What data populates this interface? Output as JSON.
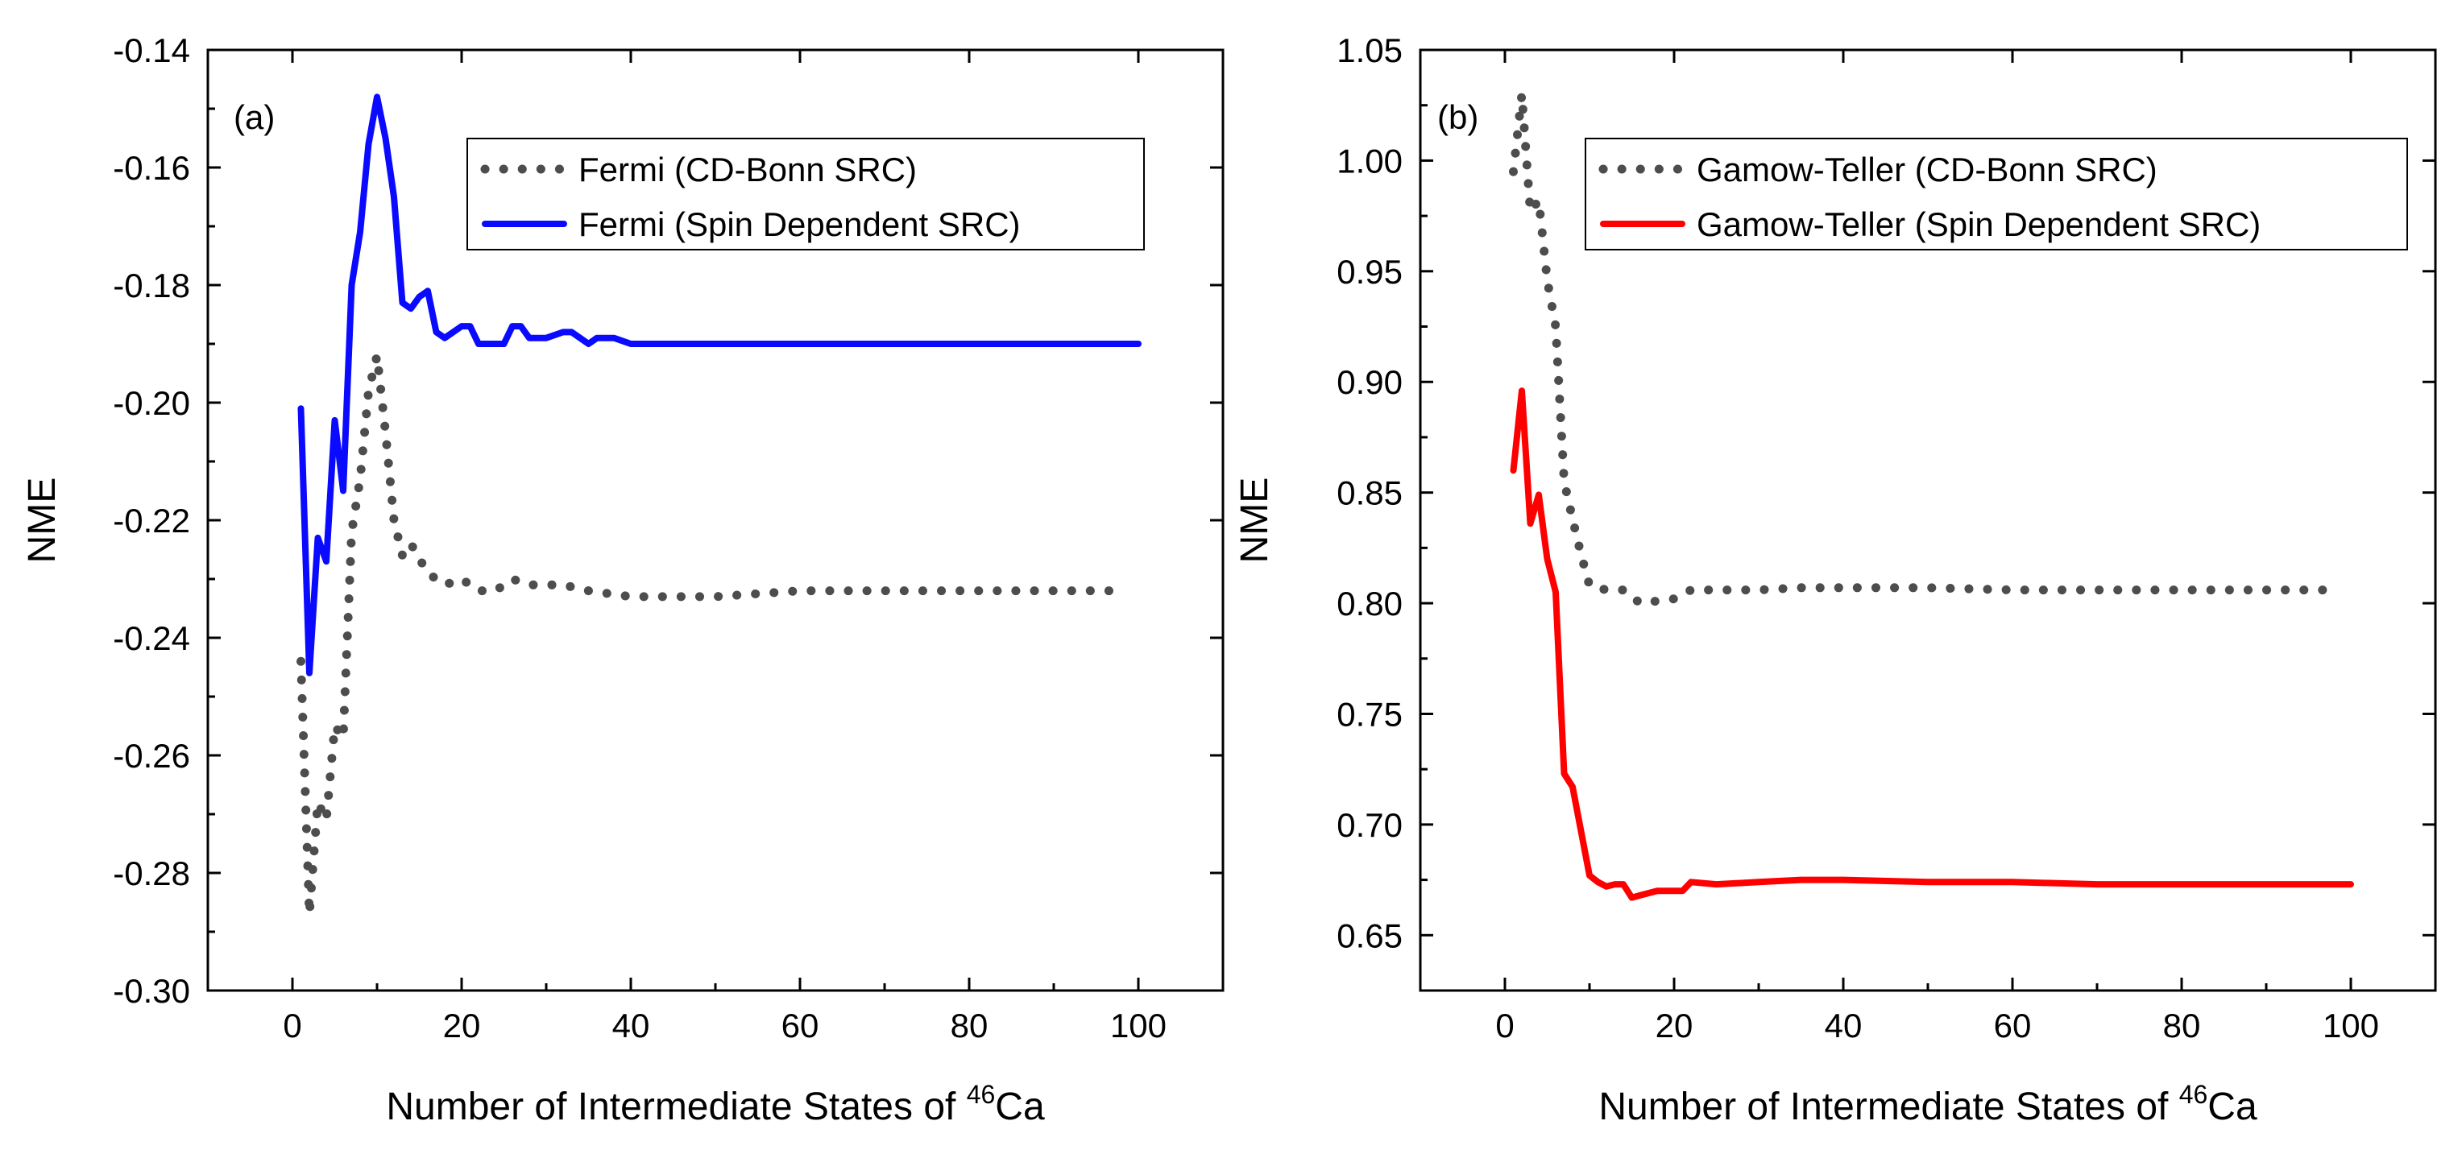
{
  "chart_data": [
    {
      "type": "line",
      "panel_label": "(a)",
      "xlabel": {
        "main": "Number of Intermediate States of ",
        "sup": "46",
        "tail": "Ca"
      },
      "ylabel": "NME",
      "xlim": [
        -10,
        110
      ],
      "ylim": [
        -0.3,
        -0.14
      ],
      "xticks": [
        0,
        20,
        40,
        60,
        80,
        100
      ],
      "xtick_labels": [
        "0",
        "20",
        "40",
        "60",
        "80",
        "100"
      ],
      "yticks": [
        -0.3,
        -0.28,
        -0.26,
        -0.24,
        -0.22,
        -0.2,
        -0.18,
        -0.16,
        -0.14
      ],
      "ytick_labels": [
        "-0.30",
        "-0.28",
        "-0.26",
        "-0.24",
        "-0.22",
        "-0.20",
        "-0.18",
        "-0.16",
        "-0.14"
      ],
      "grid": false,
      "legend_position": "top-right",
      "series": [
        {
          "name": "Fermi (CD-Bonn SRC)",
          "style": "dotted",
          "color": "#4d4d4d",
          "x": [
            1,
            2,
            3,
            4,
            5,
            6,
            7,
            8,
            9,
            10,
            11,
            12,
            13,
            14,
            16,
            18,
            20,
            22,
            24,
            26,
            28,
            30,
            32,
            35,
            40,
            45,
            50,
            60,
            70,
            80,
            90,
            98
          ],
          "y": [
            -0.244,
            -0.287,
            -0.268,
            -0.271,
            -0.255,
            -0.257,
            -0.222,
            -0.213,
            -0.198,
            -0.192,
            -0.205,
            -0.22,
            -0.226,
            -0.224,
            -0.229,
            -0.231,
            -0.23,
            -0.232,
            -0.232,
            -0.23,
            -0.231,
            -0.231,
            -0.231,
            -0.232,
            -0.233,
            -0.233,
            -0.233,
            -0.232,
            -0.232,
            -0.232,
            -0.232,
            -0.232
          ]
        },
        {
          "name": "Fermi (Spin Dependent SRC)",
          "style": "solid",
          "color": "#0a0aff",
          "x": [
            1,
            2,
            3,
            4,
            5,
            6,
            7,
            8,
            9,
            10,
            11,
            12,
            13,
            14,
            15,
            16,
            17,
            18,
            20,
            21,
            22,
            24,
            25,
            26,
            27,
            28,
            30,
            32,
            33,
            34,
            35,
            36,
            38,
            40,
            45,
            50,
            60,
            70,
            80,
            90,
            100
          ],
          "y": [
            -0.201,
            -0.246,
            -0.223,
            -0.227,
            -0.203,
            -0.215,
            -0.18,
            -0.171,
            -0.156,
            -0.148,
            -0.155,
            -0.165,
            -0.183,
            -0.184,
            -0.182,
            -0.181,
            -0.188,
            -0.189,
            -0.187,
            -0.187,
            -0.19,
            -0.19,
            -0.19,
            -0.187,
            -0.187,
            -0.189,
            -0.189,
            -0.188,
            -0.188,
            -0.189,
            -0.19,
            -0.189,
            -0.189,
            -0.19,
            -0.19,
            -0.19,
            -0.19,
            -0.19,
            -0.19,
            -0.19,
            -0.19
          ]
        }
      ]
    },
    {
      "type": "line",
      "panel_label": "(b)",
      "xlabel": {
        "main": "Number of Intermediate States of ",
        "sup": "46",
        "tail": "Ca"
      },
      "ylabel": "NME",
      "xlim": [
        -10,
        110
      ],
      "ylim": [
        0.625,
        1.05
      ],
      "xticks": [
        0,
        20,
        40,
        60,
        80,
        100
      ],
      "xtick_labels": [
        "0",
        "20",
        "40",
        "60",
        "80",
        "100"
      ],
      "yticks": [
        0.65,
        0.7,
        0.75,
        0.8,
        0.85,
        0.9,
        0.95,
        1.0,
        1.05
      ],
      "ytick_labels": [
        "0.65",
        "0.70",
        "0.75",
        "0.80",
        "0.85",
        "0.90",
        "0.95",
        "1.00",
        "1.05"
      ],
      "grid": false,
      "legend_position": "top-right",
      "series": [
        {
          "name": "Gamow-Teller (CD-Bonn SRC)",
          "style": "dotted",
          "color": "#4d4d4d",
          "x": [
            1,
            2,
            3,
            4,
            5,
            6,
            7,
            8,
            9,
            10,
            12,
            14,
            16,
            18,
            20,
            22,
            25,
            30,
            35,
            40,
            50,
            60,
            70,
            80,
            90,
            98
          ],
          "y": [
            0.995,
            1.03,
            0.977,
            0.982,
            0.946,
            0.925,
            0.855,
            0.838,
            0.822,
            0.808,
            0.806,
            0.806,
            0.8,
            0.801,
            0.802,
            0.806,
            0.806,
            0.806,
            0.807,
            0.807,
            0.807,
            0.806,
            0.806,
            0.806,
            0.806,
            0.806
          ]
        },
        {
          "name": "Gamow-Teller (Spin Dependent SRC)",
          "style": "solid",
          "color": "#ff0000",
          "x": [
            1,
            2,
            3,
            4,
            5,
            6,
            7,
            8,
            9,
            10,
            11,
            12,
            13,
            14,
            15,
            16,
            18,
            20,
            21,
            22,
            25,
            30,
            35,
            40,
            50,
            60,
            70,
            80,
            90,
            100
          ],
          "y": [
            0.86,
            0.896,
            0.836,
            0.849,
            0.82,
            0.805,
            0.723,
            0.717,
            0.697,
            0.677,
            0.674,
            0.672,
            0.673,
            0.673,
            0.667,
            0.668,
            0.67,
            0.67,
            0.67,
            0.674,
            0.673,
            0.674,
            0.675,
            0.675,
            0.674,
            0.674,
            0.673,
            0.673,
            0.673,
            0.673
          ]
        }
      ]
    }
  ]
}
